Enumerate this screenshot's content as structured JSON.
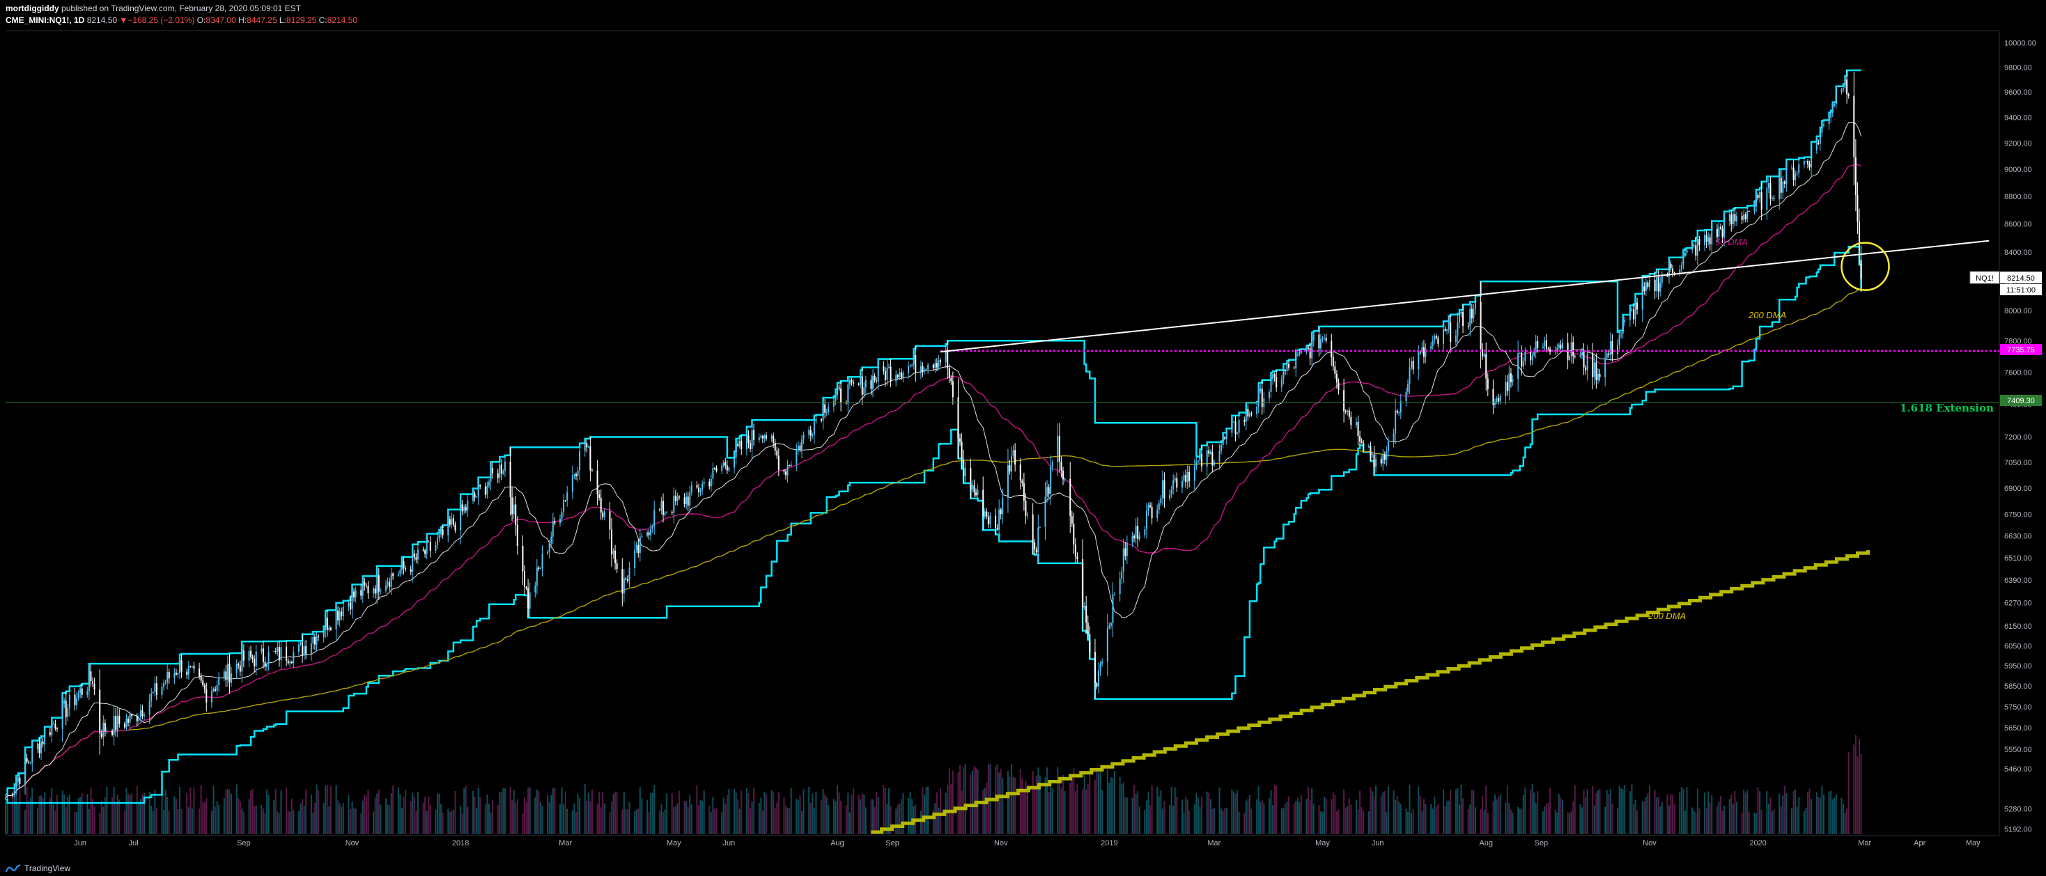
{
  "header": {
    "author": "mortdiggiddy",
    "published_text": "published on TradingView.com, February 28, 2020 05:09:01 EST",
    "symbol": "CME_MINI:NQ1!, 1D",
    "last": "8214.50",
    "change": "−168.25 (−2.01%)",
    "open_label": "O:",
    "open": "8347.00",
    "high_label": "H:",
    "high": "8447.25",
    "low_label": "L:",
    "low": "8129.25",
    "close_label": "C:",
    "close": "8214.50"
  },
  "price_label": {
    "symbol": "NQ1!",
    "price": "8214.50",
    "countdown": "11:51:00"
  },
  "level_labels": {
    "magenta": "7735.75",
    "green": "7409.30"
  },
  "annotations": {
    "fib": "1.618 Extension",
    "dma50": "50 DMA",
    "dma200": "200 DMA",
    "dma200_lower": "200 DMA"
  },
  "footer": {
    "brand": "TradingView"
  },
  "colors": {
    "background": "#000000",
    "candle_up": "#4fc3f7",
    "candle_down": "#ffffff",
    "donchian": "#00e5ff",
    "ma50": "#c71585",
    "ma200": "#b3a300",
    "ma20": "#e0e0e0",
    "magenta_level": "#ff00ff",
    "green_level": "#2e7d32",
    "fib_text": "#00c853",
    "circle": "#ffeb3b",
    "step_line": "#b5b800"
  },
  "chart_data": {
    "type": "candlestick",
    "symbol": "CME_MINI:NQ1!",
    "interval": "1D",
    "y_axis": {
      "scale": "log",
      "ticks": [
        5192,
        5280,
        5460,
        5550,
        5650,
        5750,
        5850,
        5950,
        6050,
        6150,
        6270,
        6390,
        6510,
        6630,
        6750,
        6900,
        7050,
        7200,
        7400,
        7600,
        7800,
        8000,
        8200,
        8400,
        8600,
        8800,
        9000,
        9200,
        9400,
        9600,
        9800,
        10000
      ],
      "range": [
        5170,
        10080
      ]
    },
    "x_axis": {
      "ticks": [
        "Jun",
        "Jul",
        "Sep",
        "Nov",
        "2018",
        "Mar",
        "May",
        "Jun",
        "Aug",
        "Sep",
        "Nov",
        "2019",
        "Mar",
        "May",
        "Jun",
        "Aug",
        "Sep",
        "Nov",
        "2020",
        "Mar",
        "Apr",
        "May"
      ],
      "tick_dates": [
        "2017-06-01",
        "2017-07-01",
        "2017-09-01",
        "2017-11-01",
        "2018-01-01",
        "2018-03-01",
        "2018-05-01",
        "2018-06-01",
        "2018-08-01",
        "2018-09-01",
        "2018-11-01",
        "2019-01-01",
        "2019-03-01",
        "2019-05-01",
        "2019-06-01",
        "2019-08-01",
        "2019-09-01",
        "2019-11-01",
        "2020-01-01",
        "2020-03-01",
        "2020-04-01",
        "2020-05-01"
      ]
    },
    "price_path": [
      [
        "2017-04-20",
        5330
      ],
      [
        "2017-05-15",
        5650
      ],
      [
        "2017-06-08",
        5890
      ],
      [
        "2017-06-12",
        5640
      ],
      [
        "2017-06-30",
        5690
      ],
      [
        "2017-07-28",
        5960
      ],
      [
        "2017-08-11",
        5820
      ],
      [
        "2017-09-01",
        5980
      ],
      [
        "2017-10-02",
        6020
      ],
      [
        "2017-11-01",
        6300
      ],
      [
        "2017-11-30",
        6450
      ],
      [
        "2017-12-18",
        6580
      ],
      [
        "2018-01-26",
        7050
      ],
      [
        "2018-02-08",
        6270
      ],
      [
        "2018-03-12",
        7170
      ],
      [
        "2018-04-02",
        6350
      ],
      [
        "2018-04-20",
        6750
      ],
      [
        "2018-05-10",
        6850
      ],
      [
        "2018-06-20",
        7250
      ],
      [
        "2018-07-02",
        7000
      ],
      [
        "2018-07-25",
        7400
      ],
      [
        "2018-08-28",
        7600
      ],
      [
        "2018-10-01",
        7700
      ],
      [
        "2018-10-11",
        7000
      ],
      [
        "2018-10-29",
        6650
      ],
      [
        "2018-11-08",
        7150
      ],
      [
        "2018-11-20",
        6550
      ],
      [
        "2018-12-03",
        7150
      ],
      [
        "2018-12-24",
        5850
      ],
      [
        "2019-01-10",
        6550
      ],
      [
        "2019-02-01",
        6900
      ],
      [
        "2019-03-01",
        7100
      ],
      [
        "2019-04-01",
        7500
      ],
      [
        "2019-05-03",
        7850
      ],
      [
        "2019-05-13",
        7400
      ],
      [
        "2019-06-03",
        7000
      ],
      [
        "2019-06-20",
        7650
      ],
      [
        "2019-07-26",
        8000
      ],
      [
        "2019-08-05",
        7350
      ],
      [
        "2019-08-20",
        7700
      ],
      [
        "2019-09-10",
        7800
      ],
      [
        "2019-10-03",
        7600
      ],
      [
        "2019-10-28",
        8100
      ],
      [
        "2019-11-27",
        8430
      ],
      [
        "2019-12-31",
        8740
      ],
      [
        "2020-01-31",
        9100
      ],
      [
        "2020-02-19",
        9750
      ],
      [
        "2020-02-24",
        9100
      ],
      [
        "2020-02-27",
        8380
      ],
      [
        "2020-02-28",
        8214.5
      ]
    ],
    "last_close": 8214.5,
    "ohlc_last": {
      "open": 8347.0,
      "high": 8447.25,
      "low": 8129.25,
      "close": 8214.5
    },
    "horizontal_levels": [
      {
        "value": 7735.75,
        "style": "dotted",
        "color": "#ff00ff"
      },
      {
        "value": 7409.3,
        "style": "solid",
        "color": "#2e7d32",
        "label": "1.618 Extension"
      }
    ],
    "trendline": {
      "from": [
        "2018-09-28",
        7730
      ],
      "to": [
        "2020-05-10",
        8480
      ]
    }
  }
}
